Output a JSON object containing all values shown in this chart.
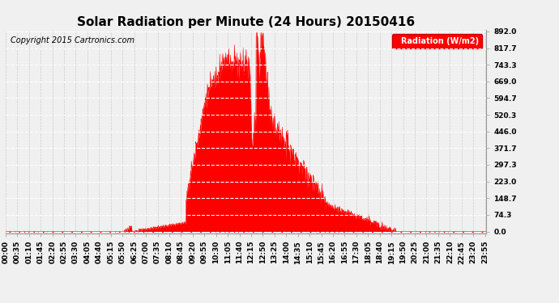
{
  "title": "Solar Radiation per Minute (24 Hours) 20150416",
  "copyright": "Copyright 2015 Cartronics.com",
  "legend_label": "Radiation (W/m2)",
  "background_color": "#f0f0f0",
  "fill_color": "#ff0000",
  "line_color": "#ff0000",
  "grid_color_x": "#bbbbbb",
  "grid_color_y": "#ffffff",
  "dashed_zero_color": "#ff0000",
  "yticks": [
    0.0,
    74.3,
    148.7,
    223.0,
    297.3,
    371.7,
    446.0,
    520.3,
    594.7,
    669.0,
    743.3,
    817.7,
    892.0
  ],
  "ymax": 892.0,
  "ymin": 0.0,
  "title_fontsize": 11,
  "copyright_fontsize": 7,
  "tick_fontsize": 6.5,
  "legend_fontsize": 7
}
